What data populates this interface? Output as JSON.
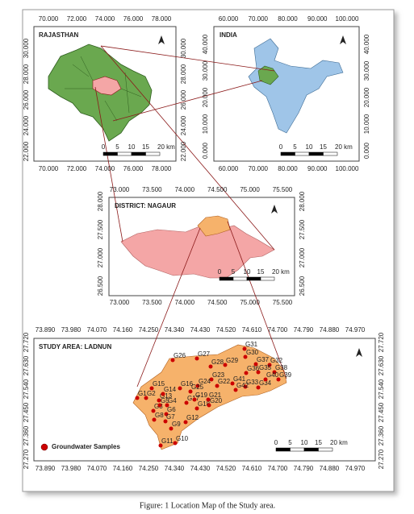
{
  "panels": {
    "rajasthan": {
      "title": "RAJASTHAN",
      "x_ticks": [
        "70.000",
        "72.000",
        "74.000",
        "76.000",
        "78.000"
      ],
      "y_ticks": [
        "30.000",
        "28.000",
        "26.000",
        "24.000",
        "22.000"
      ],
      "scale_bar": [
        "0",
        "5",
        "10",
        "15",
        "20 km"
      ]
    },
    "india": {
      "title": "INDIA",
      "x_ticks": [
        "60.000",
        "70.000",
        "80.000",
        "90.000",
        "100.000"
      ],
      "y_ticks": [
        "40.000",
        "30.000",
        "20.000",
        "10.000",
        "0.000"
      ],
      "scale_bar": [
        "0",
        "5",
        "10",
        "15",
        "20 km"
      ]
    },
    "nagaur": {
      "title": "DISTRICT: NAGAUR",
      "x_ticks": [
        "73.000",
        "73.500",
        "74.000",
        "74.500",
        "75.000",
        "75.500"
      ],
      "y_ticks": [
        "28.000",
        "27.500",
        "27.000",
        "26.500"
      ],
      "scale_bar": [
        "0",
        "5",
        "10",
        "15",
        "20 km"
      ]
    },
    "ladnun": {
      "title": "STUDY AREA: LADNUN",
      "x_ticks": [
        "73.890",
        "73.980",
        "74.070",
        "74.160",
        "74.250",
        "74.340",
        "74.430",
        "74.520",
        "74.610",
        "74.700",
        "74.790",
        "74.880",
        "74.970"
      ],
      "y_ticks": [
        "27.720",
        "27.630",
        "27.540",
        "27.450",
        "27.360",
        "27.270"
      ],
      "scale_bar": [
        "0",
        "5",
        "10",
        "15",
        "20 km"
      ],
      "legend": "Groundwater Samples",
      "samples": [
        "G1",
        "G2",
        "G3",
        "G4",
        "G5",
        "G6",
        "G7",
        "G8",
        "G9",
        "G10",
        "G11",
        "G12",
        "G13",
        "G14",
        "G15",
        "G16",
        "G17",
        "G18",
        "G19",
        "G20",
        "G21",
        "G22",
        "G23",
        "G24",
        "G25",
        "G26",
        "G27",
        "G28",
        "G29",
        "G30",
        "G31",
        "G32",
        "G33",
        "G34",
        "G35",
        "G36",
        "G37",
        "G38",
        "G39",
        "G40",
        "G41",
        "G42"
      ]
    }
  },
  "caption": "Figure: 1 Location Map of the Study area."
}
